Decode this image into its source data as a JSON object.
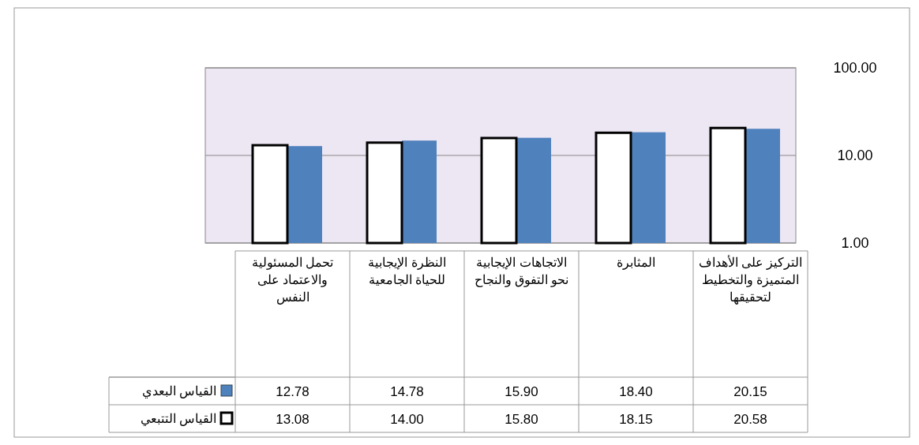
{
  "chart_data": {
    "type": "bar",
    "categories": [
      "تحمل المسئولية والاعتماد على النفس",
      "النظرة الإيجابية للحياة الجامعية",
      "الاتجاهات الإيجابية نحو التفوق والنجاح",
      "المثابرة",
      "التركيز على الأهداف المتميزة والتخطيط لتحقيقها"
    ],
    "series": [
      {
        "name": "القياس البعدي",
        "color": "#4f81bd",
        "values": [
          12.78,
          14.78,
          15.9,
          18.4,
          20.15
        ],
        "value_labels": [
          "12.78",
          "14.78",
          "15.90",
          "18.40",
          "20.15"
        ]
      },
      {
        "name": "القياس التتبعي",
        "color": "#ffffff",
        "values": [
          13.08,
          14.0,
          15.8,
          18.15,
          20.58
        ],
        "value_labels": [
          "13.08",
          "14.00",
          "15.80",
          "18.15",
          "20.58"
        ]
      }
    ],
    "log": true,
    "ylim": [
      1,
      100
    ],
    "yticks": [
      {
        "value": 1,
        "label": "1.00"
      },
      {
        "value": 10,
        "label": "10.00"
      },
      {
        "value": 100,
        "label": "100.00"
      }
    ],
    "grid": "y",
    "legend": "bottom left"
  }
}
